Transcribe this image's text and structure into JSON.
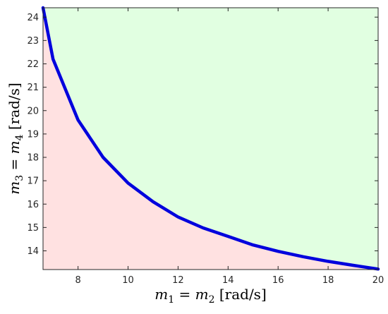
{
  "chart_data": {
    "type": "area",
    "title": "",
    "xlabel": {
      "lhs": "m",
      "lhs_sub1": "1",
      "op": " = ",
      "rhs": "m",
      "rhs_sub": "2",
      "unit": " [rad/s]"
    },
    "ylabel": {
      "lhs": "m",
      "lhs_sub1": "3",
      "op": " = ",
      "rhs": "m",
      "rhs_sub": "4",
      "unit": " [rad/s]"
    },
    "xlim": [
      6.6,
      20
    ],
    "ylim": [
      13.2,
      24.4
    ],
    "xticks": [
      "8",
      "10",
      "12",
      "14",
      "16",
      "18",
      "20"
    ],
    "yticks": [
      "14",
      "15",
      "16",
      "17",
      "18",
      "19",
      "20",
      "21",
      "22",
      "23",
      "24"
    ],
    "grid": false,
    "legend": "none",
    "colors": {
      "boundary": "#0000dd",
      "below_region": "#ffe1e1",
      "above_region": "#e1ffe1",
      "axes": "#262626"
    },
    "series": [
      {
        "x": [
          6.6,
          7,
          8,
          9,
          10,
          11,
          12,
          13,
          14,
          15,
          16,
          17,
          18,
          19,
          20
        ],
        "values": [
          24.4,
          22.2,
          19.6,
          18.0,
          16.9,
          16.1,
          15.45,
          14.98,
          14.62,
          14.25,
          13.98,
          13.75,
          13.55,
          13.38,
          13.22
        ]
      }
    ]
  }
}
